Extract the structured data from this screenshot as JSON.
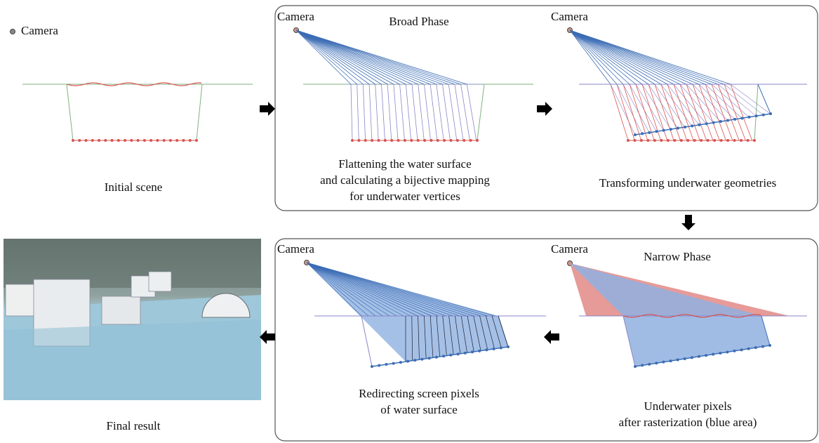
{
  "legend": {
    "label": "Camera"
  },
  "panels": [
    {
      "caption": [
        "Initial scene"
      ]
    },
    {
      "phase": "Broad Phase",
      "camera": "Camera",
      "caption": [
        "Flattening the water surface",
        "and calculating a bijective mapping",
        "for underwater vertices"
      ]
    },
    {
      "camera": "Camera",
      "caption": [
        "Transforming underwater geometries"
      ]
    },
    {
      "phase": "Narrow Phase",
      "camera": "Camera",
      "caption": [
        "Underwater pixels",
        "after rasterization (blue area)"
      ]
    },
    {
      "camera": "Camera",
      "caption": [
        "Redirecting screen pixels",
        "of water surface"
      ]
    },
    {
      "caption": [
        "Final result"
      ]
    }
  ]
}
